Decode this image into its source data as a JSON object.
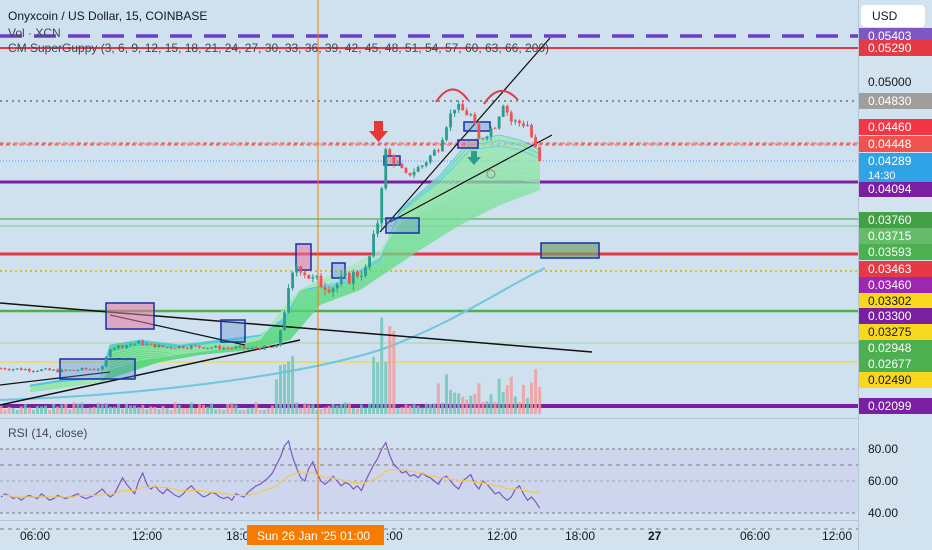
{
  "header": {
    "title": "Onyxcoin / US Dollar, 15, COINBASE",
    "vol": "Vol · XCN",
    "indicator": "CM SuperGuppy (3, 6, 9, 12, 15, 18, 21, 24, 27, 30, 33, 36, 39, 42, 45, 48, 51, 54, 57, 60, 63, 66, 200)"
  },
  "rsi_label": "RSI (14, close)",
  "currency_button": "USD",
  "countdown": "14:30",
  "crosshair_time": "Sun 26 Jan '25   01:00",
  "colors": {
    "background": "#cfe0ee",
    "up": "#2a9d8f",
    "down": "#ef5350",
    "purple": "#7b1fa2",
    "red_line": "#e53945",
    "crosshair": "#f57c00"
  },
  "chart_data": {
    "type": "candlestick",
    "symbol": "Onyxcoin / US Dollar",
    "interval": "15",
    "exchange": "COINBASE",
    "last_price": 0.04289,
    "x_ticks": [
      "06:00",
      "12:00",
      "18:00",
      "Sun 26 Jan '25   01:00",
      "12:00",
      "18:00",
      "27",
      "06:00",
      "12:00"
    ],
    "price_scale": {
      "ticks": [
        0.05,
        0.0346
      ],
      "labels": [
        {
          "value": 0.05403,
          "text": "0.05403",
          "color": "#7e57c2"
        },
        {
          "value": 0.0529,
          "text": "0.05290",
          "color": "#e53945"
        },
        {
          "value": 0.05,
          "text": "0.05000",
          "color": "none"
        },
        {
          "value": 0.0483,
          "text": "0.04830",
          "color": "#9e9e9e"
        },
        {
          "value": 0.0446,
          "text": "0.04460",
          "color": "#f23645"
        },
        {
          "value": 0.04448,
          "text": "0.04448",
          "color": "#ef5350"
        },
        {
          "value": 0.04289,
          "text": "0.04289",
          "color": "#2fa3e6"
        },
        {
          "value": 0.04094,
          "text": "0.04094",
          "color": "#7b1fa2"
        },
        {
          "value": 0.0376,
          "text": "0.03760",
          "color": "#43a047"
        },
        {
          "value": 0.03715,
          "text": "0.03715",
          "color": "#66bb6a"
        },
        {
          "value": 0.03593,
          "text": "0.03593",
          "color": "#4caf50"
        },
        {
          "value": 0.03463,
          "text": "0.03463",
          "color": "#e53945"
        },
        {
          "value": 0.0346,
          "text": "0.03460",
          "color": "#9c27b0"
        },
        {
          "value": 0.03302,
          "text": "0.03302",
          "color": "#f9d71c"
        },
        {
          "value": 0.033,
          "text": "0.03300",
          "color": "#7b1fa2"
        },
        {
          "value": 0.03275,
          "text": "0.03275",
          "color": "#f9d71c"
        },
        {
          "value": 0.02948,
          "text": "0.02948",
          "color": "#4caf50"
        },
        {
          "value": 0.02677,
          "text": "0.02677",
          "color": "#4caf50"
        },
        {
          "value": 0.0249,
          "text": "0.02490",
          "color": "#f9d71c"
        },
        {
          "value": 0.02099,
          "text": "0.02099",
          "color": "#7b1fa2"
        }
      ]
    },
    "rsi": {
      "name": "RSI (14, close)",
      "levels": [
        80,
        60,
        40
      ],
      "upper_band": 70,
      "lower_band": 30,
      "ylim": [
        20,
        95
      ],
      "values": [
        50,
        52,
        51,
        49,
        50,
        48,
        50,
        51,
        50,
        49,
        52,
        50,
        48,
        49,
        51,
        50,
        49,
        50,
        51,
        52,
        50,
        49,
        50,
        51,
        53,
        55,
        52,
        50,
        52,
        57,
        62,
        58,
        55,
        52,
        60,
        65,
        58,
        55,
        57,
        54,
        52,
        55,
        53,
        51,
        50,
        52,
        55,
        57,
        54,
        52,
        50,
        51,
        53,
        52,
        50,
        49,
        50,
        48,
        52,
        51,
        50,
        53,
        55,
        57,
        58,
        60,
        62,
        65,
        70,
        75,
        82,
        85,
        75,
        68,
        62,
        60,
        68,
        72,
        65,
        60,
        58,
        60,
        63,
        60,
        57,
        59,
        58,
        55,
        57,
        54,
        60,
        65,
        70,
        74,
        80,
        84,
        76,
        70,
        68,
        65,
        66,
        63,
        64,
        62,
        65,
        63,
        62,
        60,
        58,
        62,
        63,
        60,
        57,
        55,
        60,
        62,
        64,
        58,
        55,
        60,
        58,
        55,
        52,
        53,
        50,
        48,
        50,
        55,
        57,
        52,
        48,
        50,
        47,
        43
      ]
    },
    "rsi_ma": [
      51,
      51,
      51,
      50,
      50,
      50,
      50,
      50,
      50,
      50,
      50,
      50,
      50,
      50,
      50,
      50,
      50,
      50,
      50,
      51,
      51,
      51,
      51,
      51,
      51,
      52,
      52,
      52,
      52,
      53,
      54,
      54,
      54,
      54,
      55,
      56,
      56,
      56,
      57,
      56,
      56,
      56,
      55,
      55,
      54,
      54,
      54,
      54,
      54,
      54,
      54,
      53,
      53,
      53,
      53,
      52,
      52,
      51,
      51,
      51,
      51,
      51,
      52,
      52,
      53,
      54,
      55,
      56,
      57,
      59,
      61,
      63,
      64,
      65,
      65,
      65,
      65,
      65,
      64,
      63,
      62,
      62,
      62,
      61,
      61,
      60,
      60,
      59,
      59,
      58,
      59,
      60,
      61,
      62,
      64,
      66,
      67,
      67,
      67,
      67,
      67,
      66,
      66,
      65,
      65,
      64,
      63,
      63,
      62,
      62,
      62,
      61,
      61,
      60,
      60,
      60,
      60,
      59,
      59,
      59,
      58,
      58,
      57,
      57,
      56,
      55,
      55,
      55,
      55,
      54,
      54,
      53,
      53,
      53
    ]
  }
}
